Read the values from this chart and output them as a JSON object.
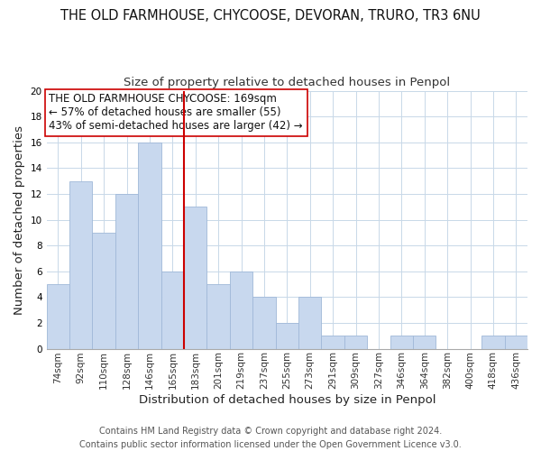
{
  "title": "THE OLD FARMHOUSE, CHYCOOSE, DEVORAN, TRURO, TR3 6NU",
  "subtitle": "Size of property relative to detached houses in Penpol",
  "xlabel": "Distribution of detached houses by size in Penpol",
  "ylabel": "Number of detached properties",
  "bar_labels": [
    "74sqm",
    "92sqm",
    "110sqm",
    "128sqm",
    "146sqm",
    "165sqm",
    "183sqm",
    "201sqm",
    "219sqm",
    "237sqm",
    "255sqm",
    "273sqm",
    "291sqm",
    "309sqm",
    "327sqm",
    "346sqm",
    "364sqm",
    "382sqm",
    "400sqm",
    "418sqm",
    "436sqm"
  ],
  "bar_values": [
    5,
    13,
    9,
    12,
    16,
    6,
    11,
    5,
    6,
    4,
    2,
    4,
    1,
    1,
    0,
    1,
    1,
    0,
    0,
    1,
    1
  ],
  "bar_color": "#c8d8ee",
  "bar_edge_color": "#a0b8d8",
  "highlight_color": "#cc0000",
  "red_line_index": 5,
  "annotation_text": "THE OLD FARMHOUSE CHYCOOSE: 169sqm\n← 57% of detached houses are smaller (55)\n43% of semi-detached houses are larger (42) →",
  "ylim": [
    0,
    20
  ],
  "yticks": [
    0,
    2,
    4,
    6,
    8,
    10,
    12,
    14,
    16,
    18,
    20
  ],
  "footer_line1": "Contains HM Land Registry data © Crown copyright and database right 2024.",
  "footer_line2": "Contains public sector information licensed under the Open Government Licence v3.0.",
  "title_fontsize": 10.5,
  "subtitle_fontsize": 9.5,
  "axis_label_fontsize": 9.5,
  "tick_fontsize": 7.5,
  "annotation_fontsize": 8.5,
  "footer_fontsize": 7.0
}
